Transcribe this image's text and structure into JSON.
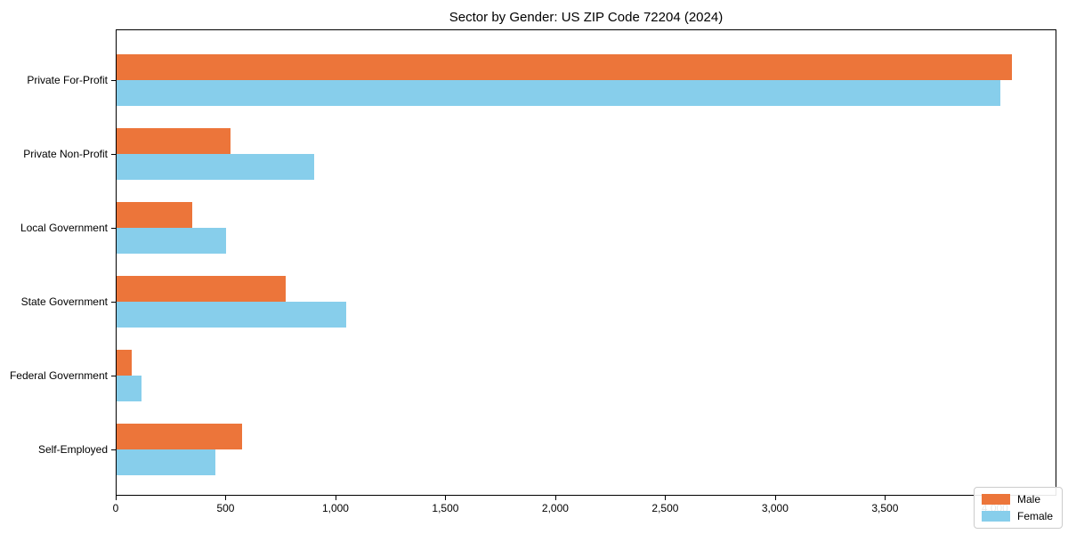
{
  "title": "Sector by Gender: US ZIP Code 72204 (2024)",
  "chart_data": {
    "type": "bar",
    "orientation": "horizontal",
    "title": "Sector by Gender: US ZIP Code 72204 (2024)",
    "xlabel": "",
    "ylabel": "",
    "categories": [
      "Private For-Profit",
      "Private Non-Profit",
      "Local Government",
      "State Government",
      "Federal Government",
      "Self-Employed"
    ],
    "series": [
      {
        "name": "Male",
        "color": "#EC753A",
        "values": [
          4075,
          520,
          345,
          770,
          70,
          570
        ]
      },
      {
        "name": "Female",
        "color": "#87CEEB",
        "values": [
          4020,
          900,
          500,
          1045,
          115,
          450
        ]
      }
    ],
    "xlim": [
      0,
      4280
    ],
    "xticks": [
      0,
      500,
      1000,
      1500,
      2000,
      2500,
      3000,
      3500,
      4000
    ],
    "grid": false,
    "legend_position": "lower right"
  }
}
